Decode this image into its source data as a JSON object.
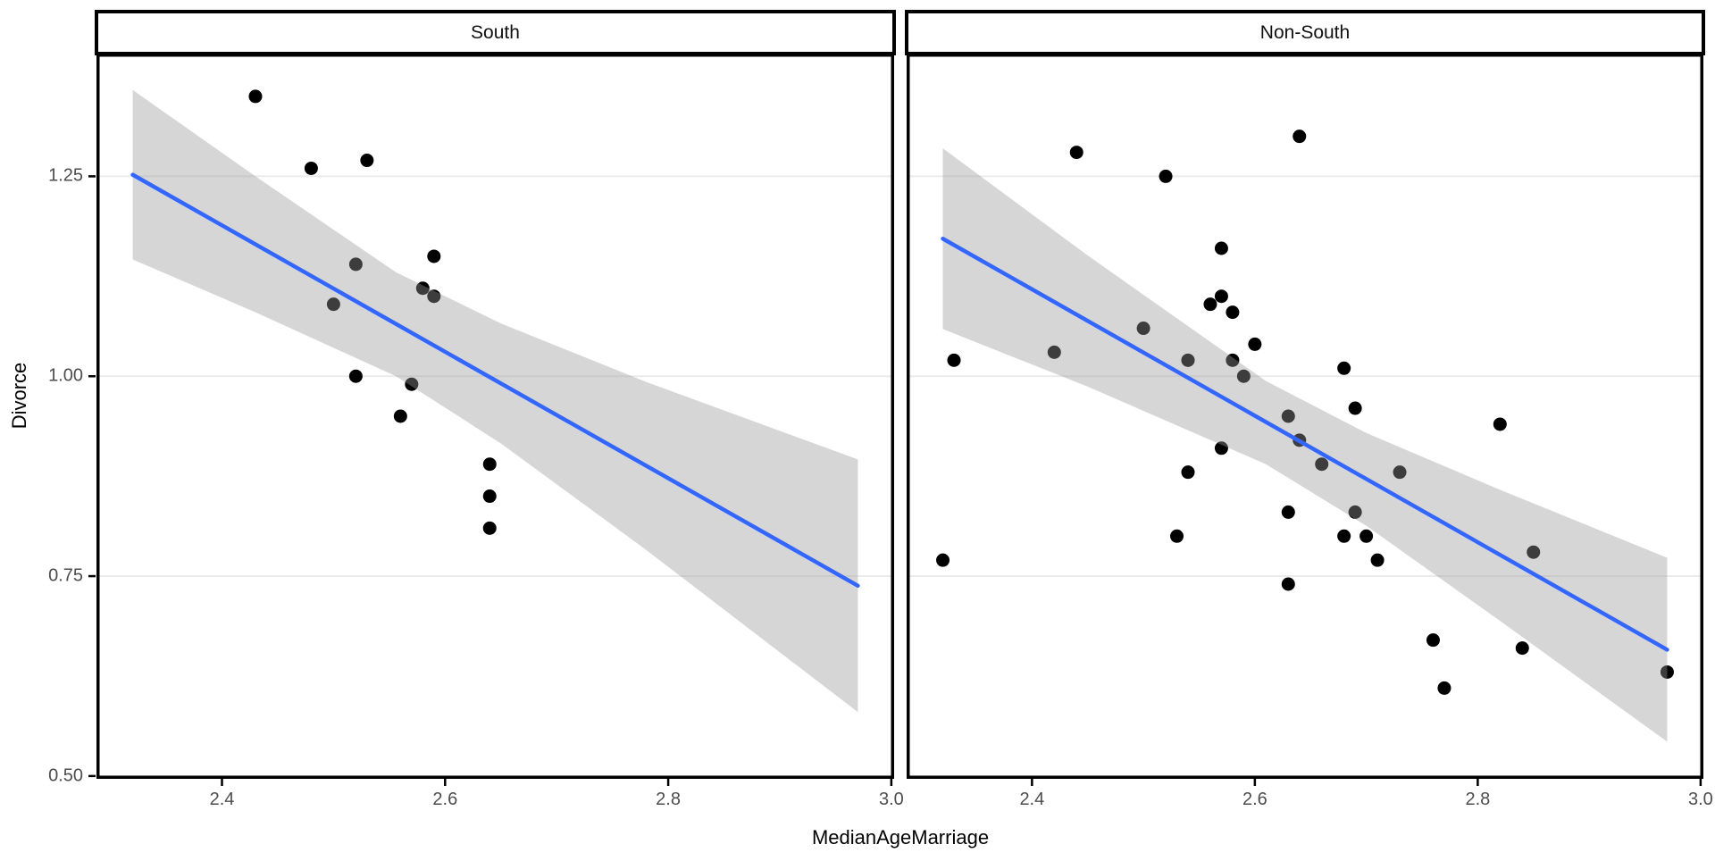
{
  "chart_data": {
    "type": "scatter",
    "title": "",
    "xlabel": "MedianAgeMarriage",
    "ylabel": "Divorce",
    "legend": "none",
    "grid": "horizontal-major-only",
    "x_range": [
      2.2875,
      3.0025
    ],
    "y_range": [
      0.4965,
      1.4035
    ],
    "x_ticks": [
      {
        "v": 2.4,
        "label": "2.4"
      },
      {
        "v": 2.6,
        "label": "2.6"
      },
      {
        "v": 2.8,
        "label": "2.8"
      },
      {
        "v": 3.0,
        "label": "3.0"
      }
    ],
    "y_ticks": [
      {
        "v": 1.25,
        "label": "1.25"
      },
      {
        "v": 1.0,
        "label": "1.00"
      },
      {
        "v": 0.75,
        "label": "0.75"
      },
      {
        "v": 0.5,
        "label": "0.50"
      }
    ],
    "facets": [
      {
        "label": "South",
        "points": [
          [
            2.43,
            1.35
          ],
          [
            2.48,
            1.26
          ],
          [
            2.53,
            1.27
          ],
          [
            2.59,
            1.15
          ],
          [
            2.52,
            1.14
          ],
          [
            2.58,
            1.11
          ],
          [
            2.59,
            1.1
          ],
          [
            2.5,
            1.09
          ],
          [
            2.52,
            1.0
          ],
          [
            2.57,
            0.99
          ],
          [
            2.56,
            0.95
          ],
          [
            2.64,
            0.89
          ],
          [
            2.64,
            0.85
          ],
          [
            2.64,
            0.81
          ]
        ],
        "line": {
          "x1": 2.32,
          "y1": 1.252,
          "x2": 2.97,
          "y2": 0.738
        },
        "ribbon": {
          "x": [
            2.32,
            2.43,
            2.556,
            2.65,
            2.78,
            2.97
          ],
          "upper": [
            1.358,
            1.25,
            1.13,
            1.066,
            0.993,
            0.896
          ],
          "lower": [
            1.146,
            1.08,
            1.0,
            0.916,
            0.783,
            0.58
          ]
        }
      },
      {
        "label": "Non-South",
        "points": [
          [
            2.64,
            1.3
          ],
          [
            2.44,
            1.28
          ],
          [
            2.52,
            1.25
          ],
          [
            2.57,
            1.16
          ],
          [
            2.57,
            1.1
          ],
          [
            2.56,
            1.09
          ],
          [
            2.58,
            1.08
          ],
          [
            2.5,
            1.06
          ],
          [
            2.6,
            1.04
          ],
          [
            2.42,
            1.03
          ],
          [
            2.33,
            1.02
          ],
          [
            2.54,
            1.02
          ],
          [
            2.58,
            1.02
          ],
          [
            2.68,
            1.01
          ],
          [
            2.59,
            1.0
          ],
          [
            2.69,
            0.96
          ],
          [
            2.63,
            0.95
          ],
          [
            2.82,
            0.94
          ],
          [
            2.64,
            0.92
          ],
          [
            2.57,
            0.91
          ],
          [
            2.66,
            0.89
          ],
          [
            2.54,
            0.88
          ],
          [
            2.73,
            0.88
          ],
          [
            2.63,
            0.83
          ],
          [
            2.69,
            0.83
          ],
          [
            2.68,
            0.8
          ],
          [
            2.7,
            0.8
          ],
          [
            2.53,
            0.8
          ],
          [
            2.71,
            0.77
          ],
          [
            2.32,
            0.77
          ],
          [
            2.63,
            0.74
          ],
          [
            2.85,
            0.78
          ],
          [
            2.76,
            0.67
          ],
          [
            2.84,
            0.66
          ],
          [
            2.97,
            0.63
          ],
          [
            2.77,
            0.61
          ]
        ],
        "line": {
          "x1": 2.32,
          "y1": 1.172,
          "x2": 2.97,
          "y2": 0.658
        },
        "ribbon": {
          "x": [
            2.32,
            2.45,
            2.61,
            2.7,
            2.82,
            2.97
          ],
          "upper": [
            1.285,
            1.151,
            0.994,
            0.929,
            0.858,
            0.773
          ],
          "lower": [
            1.059,
            0.987,
            0.89,
            0.813,
            0.694,
            0.543
          ]
        }
      }
    ],
    "colors": {
      "point": "#000000",
      "smooth_line": "#3366FF",
      "ribbon_fill": "#999999",
      "ribbon_opacity": 0.4,
      "gridline": "#EBEBEB",
      "panel_border": "#000000",
      "strip_background": "#FFFFFF",
      "strip_text": "#111111",
      "tick_label": "#4D4D4D",
      "axis_title": "#000000",
      "background": "#FFFFFF"
    }
  }
}
